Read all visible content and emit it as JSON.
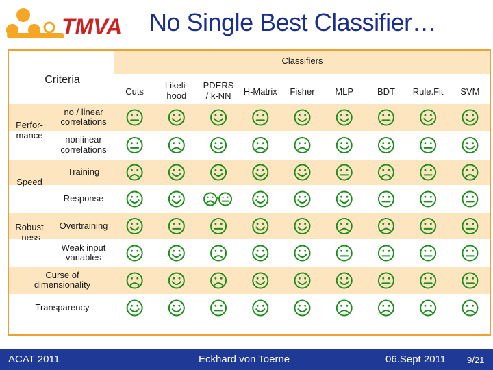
{
  "slide": {
    "logo_text": "TMVA",
    "title": "No Single Best Classifier…"
  },
  "table": {
    "group_header": "Classifiers",
    "criteria_header": "Criteria",
    "classifiers": [
      "Cuts",
      "Likeli-\nhood",
      "PDERS\n/ k-NN",
      "H-Matrix",
      "Fisher",
      "MLP",
      "BDT",
      "Rule.Fit",
      "SVM"
    ],
    "groups": [
      {
        "label": "Perfor-\nmance"
      },
      {
        "label": "Speed"
      },
      {
        "label": "Robust\n-ness"
      }
    ],
    "rows": [
      {
        "label": "no / linear\ncorrelations",
        "ratings": [
          "neutral",
          "happy",
          "happy",
          "neutral",
          "happy",
          "happy",
          "neutral",
          "happy",
          "happy"
        ]
      },
      {
        "label": "nonlinear\ncorrelations",
        "ratings": [
          "neutral",
          "sad",
          "happy",
          "sad",
          "sad",
          "happy",
          "happy",
          "neutral",
          "happy"
        ]
      },
      {
        "label": "Training",
        "ratings": [
          "sad",
          "happy",
          "happy",
          "happy",
          "happy",
          "neutral",
          "sad",
          "neutral",
          "sad"
        ]
      },
      {
        "label": "Response",
        "ratings": [
          "happy",
          "happy",
          "sad/neutral",
          "happy",
          "happy",
          "happy",
          "neutral",
          "neutral",
          "neutral"
        ]
      },
      {
        "label": "Overtraining",
        "ratings": [
          "happy",
          "neutral",
          "neutral",
          "happy",
          "happy",
          "sad",
          "sad",
          "neutral",
          "neutral"
        ]
      },
      {
        "label": "Weak input\nvariables",
        "ratings": [
          "happy",
          "happy",
          "sad",
          "happy",
          "happy",
          "neutral",
          "neutral",
          "neutral",
          "neutral"
        ]
      },
      {
        "label": "Curse of\ndimensionality",
        "ratings": [
          "sad",
          "happy",
          "sad",
          "happy",
          "happy",
          "happy",
          "neutral",
          "neutral",
          "neutral"
        ]
      },
      {
        "label": "Transparency",
        "ratings": [
          "happy",
          "happy",
          "neutral",
          "happy",
          "happy",
          "sad",
          "sad",
          "sad",
          "sad"
        ]
      }
    ]
  },
  "footer": {
    "left": "ACAT 2011",
    "center": "Eckhard von Toerne",
    "right": "06.Sept 2011",
    "page": "9/21"
  },
  "colors": {
    "panel_border": "#f0a030",
    "stripe_light": "#fde6bf",
    "stripe_white": "#ffffff",
    "smiley": "#1e8c1e",
    "footer_bg": "#1f3a96",
    "title": "#1a2e8c",
    "logo_red": "#cc2222",
    "logo_orange": "#f5a623"
  }
}
